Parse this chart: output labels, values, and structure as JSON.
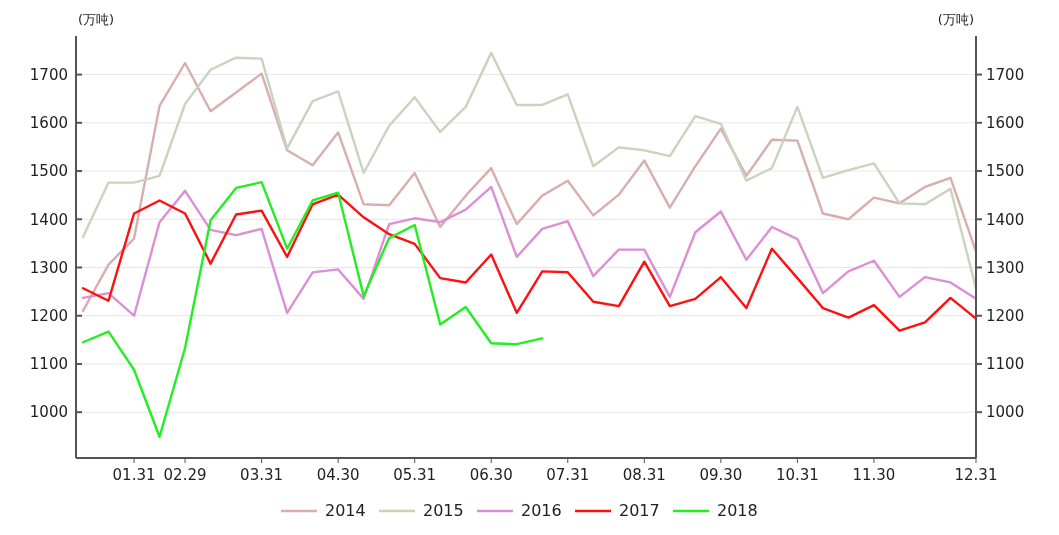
{
  "chart_data": {
    "type": "line",
    "ylabel": "(万吨)",
    "y2label": "(万吨)",
    "categories": [
      null,
      null,
      "01.31",
      null,
      "02.29",
      null,
      null,
      "03.31",
      null,
      null,
      "04.30",
      null,
      null,
      "05.31",
      null,
      null,
      "06.30",
      null,
      null,
      "07.31",
      null,
      null,
      "08.31",
      null,
      null,
      "09.30",
      null,
      null,
      "10.31",
      null,
      null,
      "11.30",
      null,
      null,
      null,
      "12.31"
    ],
    "ylim": [
      905,
      1780
    ],
    "yticks": [
      1000,
      1100,
      1200,
      1300,
      1400,
      1500,
      1600,
      1700
    ],
    "y2lim": [
      905,
      1780
    ],
    "y2ticks": [
      1000,
      1100,
      1200,
      1300,
      1400,
      1500,
      1600,
      1700
    ],
    "grid": "y",
    "legend": "bottom",
    "series": [
      {
        "name": "2014",
        "color": "#d8aeae",
        "values": [
          1210,
          1306,
          1360,
          1635,
          1724,
          1624,
          1663,
          1702,
          1543,
          1512,
          1580,
          1431,
          1429,
          1496,
          1384,
          1449,
          1506,
          1390,
          1449,
          1480,
          1408,
          1451,
          1522,
          1424,
          1510,
          1588,
          1490,
          1565,
          1563,
          1412,
          1400,
          1445,
          1433,
          1467,
          1486,
          1333
        ]
      },
      {
        "name": "2015",
        "color": "#cad3bc",
        "values": [
          1363,
          1476,
          1476,
          1490,
          1639,
          1710,
          1735,
          1733,
          1547,
          1645,
          1665,
          1496,
          1594,
          1653,
          1581,
          1633,
          1745,
          1637,
          1637,
          1659,
          1510,
          1549,
          1543,
          1531,
          1614,
          1598,
          1480,
          1506,
          1633,
          1486,
          1502,
          1516,
          1433,
          1431,
          1463,
          1257
        ]
      },
      {
        "name": "2016",
        "color": "#dc8fd4",
        "values": [
          1237,
          1247,
          1200,
          1394,
          1459,
          1378,
          1367,
          1380,
          1206,
          1290,
          1296,
          1235,
          1390,
          1402,
          1394,
          1420,
          1467,
          1322,
          1380,
          1396,
          1282,
          1337,
          1337,
          1239,
          1373,
          1416,
          1316,
          1384,
          1359,
          1247,
          1292,
          1314,
          1239,
          1280,
          1269,
          1235
        ]
      },
      {
        "name": "2017",
        "color": "#ff1010",
        "values": [
          1257,
          1231,
          1412,
          1439,
          1412,
          1308,
          1410,
          1418,
          1322,
          1431,
          1451,
          1404,
          1369,
          1349,
          1278,
          1269,
          1327,
          1206,
          1292,
          1290,
          1229,
          1220,
          1312,
          1220,
          1235,
          1280,
          1216,
          1339,
          1278,
          1216,
          1196,
          1222,
          1169,
          1186,
          1237,
          1194
        ]
      },
      {
        "name": "2018",
        "color": "#22ee22",
        "values": [
          1145,
          1167,
          1088,
          949,
          1133,
          1398,
          1465,
          1477,
          1339,
          1439,
          1455,
          1241,
          1361,
          1388,
          1182,
          1218,
          1143,
          1141,
          1153,
          null,
          null,
          null,
          null,
          null,
          null,
          null,
          null,
          null,
          null,
          null,
          null,
          null,
          null,
          null,
          null,
          null
        ]
      }
    ]
  }
}
